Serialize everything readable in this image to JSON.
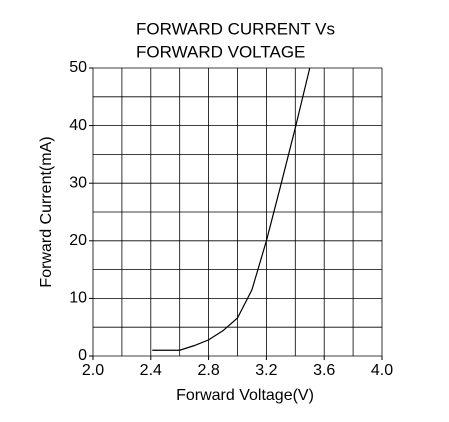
{
  "chart_data": {
    "type": "line",
    "title": [
      "FORWARD CURRENT Vs",
      "FORWARD VOLTAGE"
    ],
    "x_label": "Forward Voltage(V)",
    "y_label": "Forward Current(mA)",
    "x": [
      2.41,
      2.6,
      2.7,
      2.8,
      2.9,
      3.0,
      3.1,
      3.2,
      3.3,
      3.4,
      3.5
    ],
    "series": [
      {
        "color": "#000000",
        "values": [
          1,
          1,
          1.8,
          2.8,
          4.4,
          6.6,
          11.5,
          20,
          29.7,
          39.6,
          50
        ]
      }
    ],
    "xlim": [
      2.0,
      4.0
    ],
    "ylim": [
      0,
      50
    ],
    "xticks": [
      {
        "value": 2.0,
        "label": "2.0"
      },
      2.4,
      2.8,
      3.2,
      3.6,
      {
        "value": 4.0,
        "label": "4.0"
      }
    ],
    "yticks": [
      0,
      10,
      20,
      30,
      40,
      50
    ],
    "xgrid": [
      2.0,
      2.2,
      2.4,
      2.6,
      2.8,
      3.0,
      3.2,
      3.4,
      3.6,
      3.8,
      4.0
    ],
    "ygrid": [
      0,
      5,
      10,
      15,
      20,
      25,
      30,
      35,
      40,
      45,
      50
    ],
    "grid": true
  }
}
